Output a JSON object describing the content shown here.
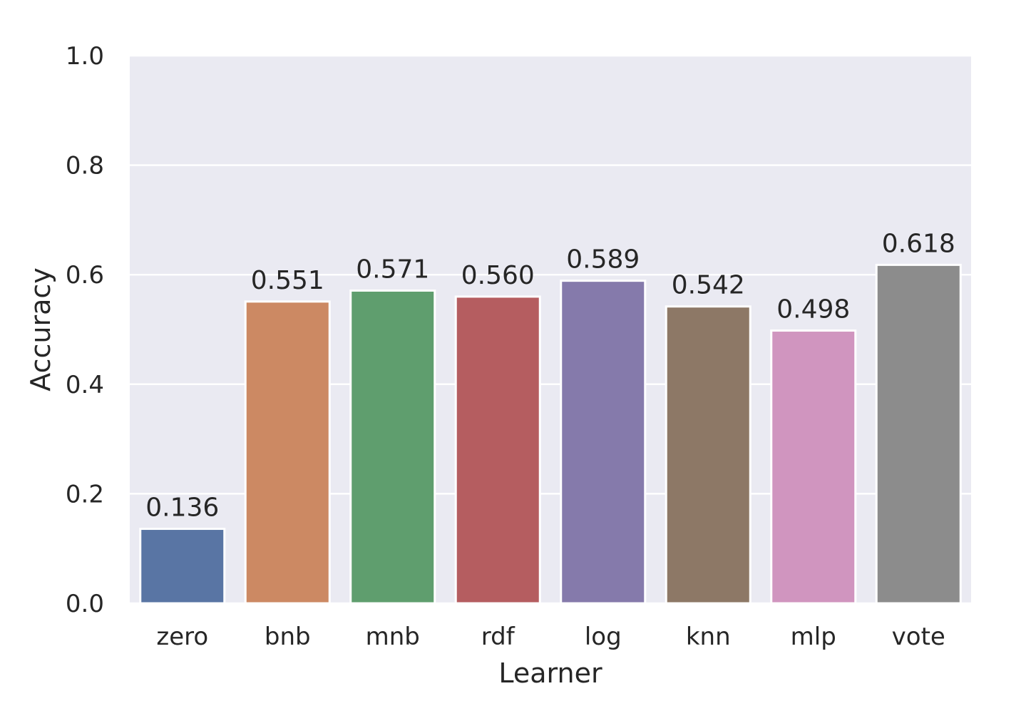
{
  "chart_data": {
    "type": "bar",
    "title": "",
    "xlabel": "Learner",
    "ylabel": "Accuracy",
    "categories": [
      "zero",
      "bnb",
      "mnb",
      "rdf",
      "log",
      "knn",
      "mlp",
      "vote"
    ],
    "values": [
      0.136,
      0.551,
      0.571,
      0.56,
      0.589,
      0.542,
      0.498,
      0.618
    ],
    "value_labels": [
      "0.136",
      "0.551",
      "0.571",
      "0.560",
      "0.589",
      "0.542",
      "0.498",
      "0.618"
    ],
    "colors": [
      "#5975a4",
      "#cc8963",
      "#5f9e6e",
      "#b55d60",
      "#857aab",
      "#8d7866",
      "#d095bf",
      "#8c8c8c"
    ],
    "ylim": [
      0,
      1
    ],
    "yticks": [
      0.0,
      0.2,
      0.4,
      0.6,
      0.8,
      1.0
    ],
    "ytick_labels": [
      "0.0",
      "0.2",
      "0.4",
      "0.6",
      "0.8",
      "1.0"
    ],
    "grid": true,
    "background": "#eaeaf2",
    "gridline_color": "#ffffff"
  }
}
